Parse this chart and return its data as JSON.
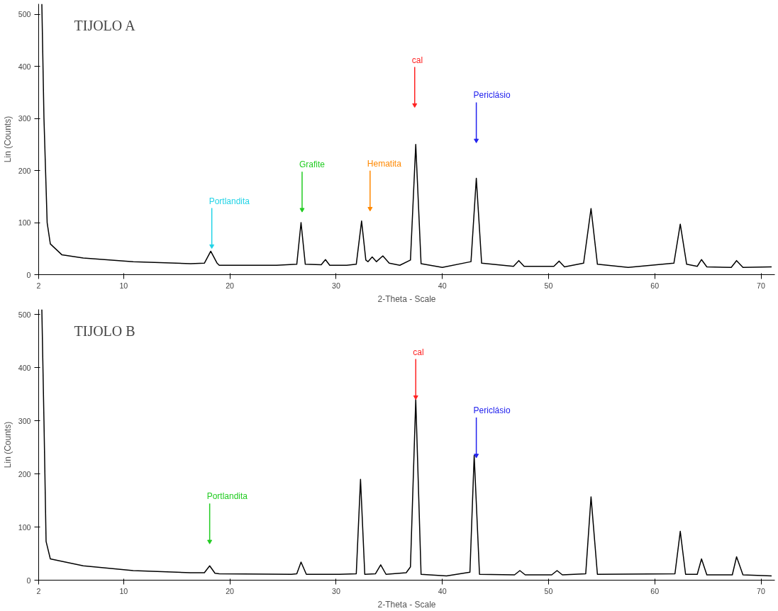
{
  "chart_data": [
    {
      "type": "line",
      "title": "TIJOLO A",
      "xlabel": "2-Theta - Scale",
      "ylabel": "Lin (Counts)",
      "x": [
        2.3,
        2.5,
        2.8,
        3.1,
        4.2,
        6.2,
        10.9,
        16.3,
        17.6,
        18.2,
        18.8,
        19.0,
        24.4,
        26.3,
        26.7,
        27.1,
        28.6,
        29.0,
        29.4,
        31.0,
        31.9,
        32.4,
        32.8,
        33.0,
        33.4,
        33.8,
        34.4,
        35.0,
        36.0,
        37.0,
        37.5,
        38.0,
        40.0,
        42.7,
        43.2,
        43.7,
        46.7,
        47.2,
        47.7,
        50.5,
        51.0,
        51.5,
        53.3,
        54.0,
        54.6,
        57.5,
        61.8,
        62.4,
        63.0,
        64.0,
        64.4,
        64.9,
        67.2,
        67.7,
        68.3,
        71.0
      ],
      "values": [
        520,
        300,
        100,
        59,
        38,
        32,
        25,
        21,
        22,
        45,
        22,
        18,
        18,
        20,
        100,
        20,
        19,
        29,
        18,
        18,
        20,
        103,
        28,
        25,
        34,
        25,
        36,
        22,
        18,
        28,
        250,
        21,
        14,
        25,
        185,
        22,
        16,
        27,
        16,
        16,
        26,
        15,
        22,
        127,
        20,
        14,
        22,
        97,
        20,
        16,
        29,
        15,
        14,
        27,
        14,
        15
      ],
      "color": "#000000",
      "marker": "none",
      "line_style": "solid",
      "xlim": [
        2,
        71.3
      ],
      "ylim": [
        0,
        520
      ],
      "xticks": [
        2,
        10,
        20,
        30,
        40,
        50,
        60,
        70
      ],
      "yticks": [
        0,
        100,
        200,
        300,
        400,
        500
      ],
      "grid": false,
      "annotations": [
        {
          "text": "Portlandita",
          "x": 18.3,
          "y": 55
        },
        {
          "text": "Grafite",
          "x": 26.8,
          "y": 125
        },
        {
          "text": "Hematita",
          "x": 33.2,
          "y": 127
        },
        {
          "text": "cal",
          "x": 37.4,
          "y": 326
        },
        {
          "text": "Periclásio",
          "x": 43.2,
          "y": 258
        }
      ]
    },
    {
      "type": "line",
      "title": "TIJOLO B",
      "xlabel": "2-Theta - Scale",
      "ylabel": "Lin (Counts)",
      "x": [
        2.3,
        2.5,
        2.7,
        3.1,
        6.2,
        10.9,
        16.3,
        17.6,
        18.1,
        18.6,
        19.0,
        25.8,
        26.3,
        26.7,
        27.2,
        30.3,
        31.9,
        32.3,
        32.7,
        33.7,
        34.2,
        34.7,
        36.6,
        37.0,
        37.5,
        38.0,
        40.4,
        42.6,
        43.0,
        43.5,
        46.8,
        47.3,
        47.8,
        50.3,
        50.8,
        51.3,
        53.5,
        54.0,
        54.6,
        61.9,
        62.4,
        62.9,
        64.0,
        64.4,
        64.9,
        67.3,
        67.7,
        68.3,
        71.0
      ],
      "values": [
        510,
        300,
        73,
        40,
        27,
        18,
        14,
        14,
        27,
        13,
        12,
        11,
        12,
        34,
        11,
        11,
        12,
        190,
        11,
        12,
        29,
        11,
        14,
        25,
        340,
        11,
        8,
        15,
        235,
        11,
        10,
        18,
        10,
        10,
        18,
        10,
        12,
        157,
        11,
        12,
        92,
        11,
        11,
        40,
        10,
        10,
        44,
        10,
        8
      ],
      "color": "#000000",
      "marker": "none",
      "line_style": "solid",
      "xlim": [
        2,
        71.3
      ],
      "ylim": [
        0,
        510
      ],
      "xticks": [
        2,
        10,
        20,
        30,
        40,
        50,
        60,
        70
      ],
      "yticks": [
        0,
        100,
        200,
        300,
        400,
        500
      ],
      "grid": false,
      "annotations": [
        {
          "text": "Portlandita",
          "x": 18.1,
          "y": 73
        },
        {
          "text": "cal",
          "x": 37.5,
          "y": 345
        },
        {
          "text": "Periclásio",
          "x": 43.2,
          "y": 235
        }
      ]
    }
  ]
}
